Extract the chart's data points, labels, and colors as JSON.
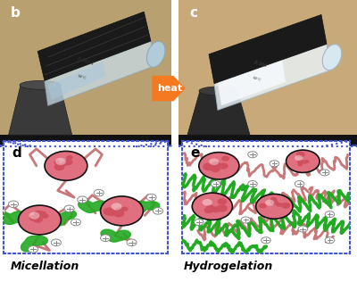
{
  "fig_width": 4.0,
  "fig_height": 3.16,
  "dpi": 100,
  "bg_color": "#ffffff",
  "photo_bg_left": "#b8a070",
  "photo_bg_right": "#c8aa7a",
  "panel_b_label": "b",
  "panel_c_label": "c",
  "panel_d_label": "d",
  "panel_e_label": "e",
  "arrow_color": "#f47920",
  "arrow_text": "heat",
  "arrow_text_color": "#ffffff",
  "dashed_line_color": "#4455cc",
  "micelle_fill": "#e07080",
  "micelle_edge": "#111111",
  "polymer_color_pink": "#c87878",
  "polymer_color_green": "#22aa22",
  "plus_circle_color": "#888888",
  "label_micellation": "Micellation",
  "label_hydrogelation": "Hydrogelation",
  "label_fontsize": 9,
  "panel_label_fontsize": 11,
  "diagram_bg": "#ffffff",
  "diagram_border": "#4455cc",
  "vial_cap_color": "#1a1a1a",
  "stand_color": "#2a2a2a",
  "shelf_color": "#111111"
}
